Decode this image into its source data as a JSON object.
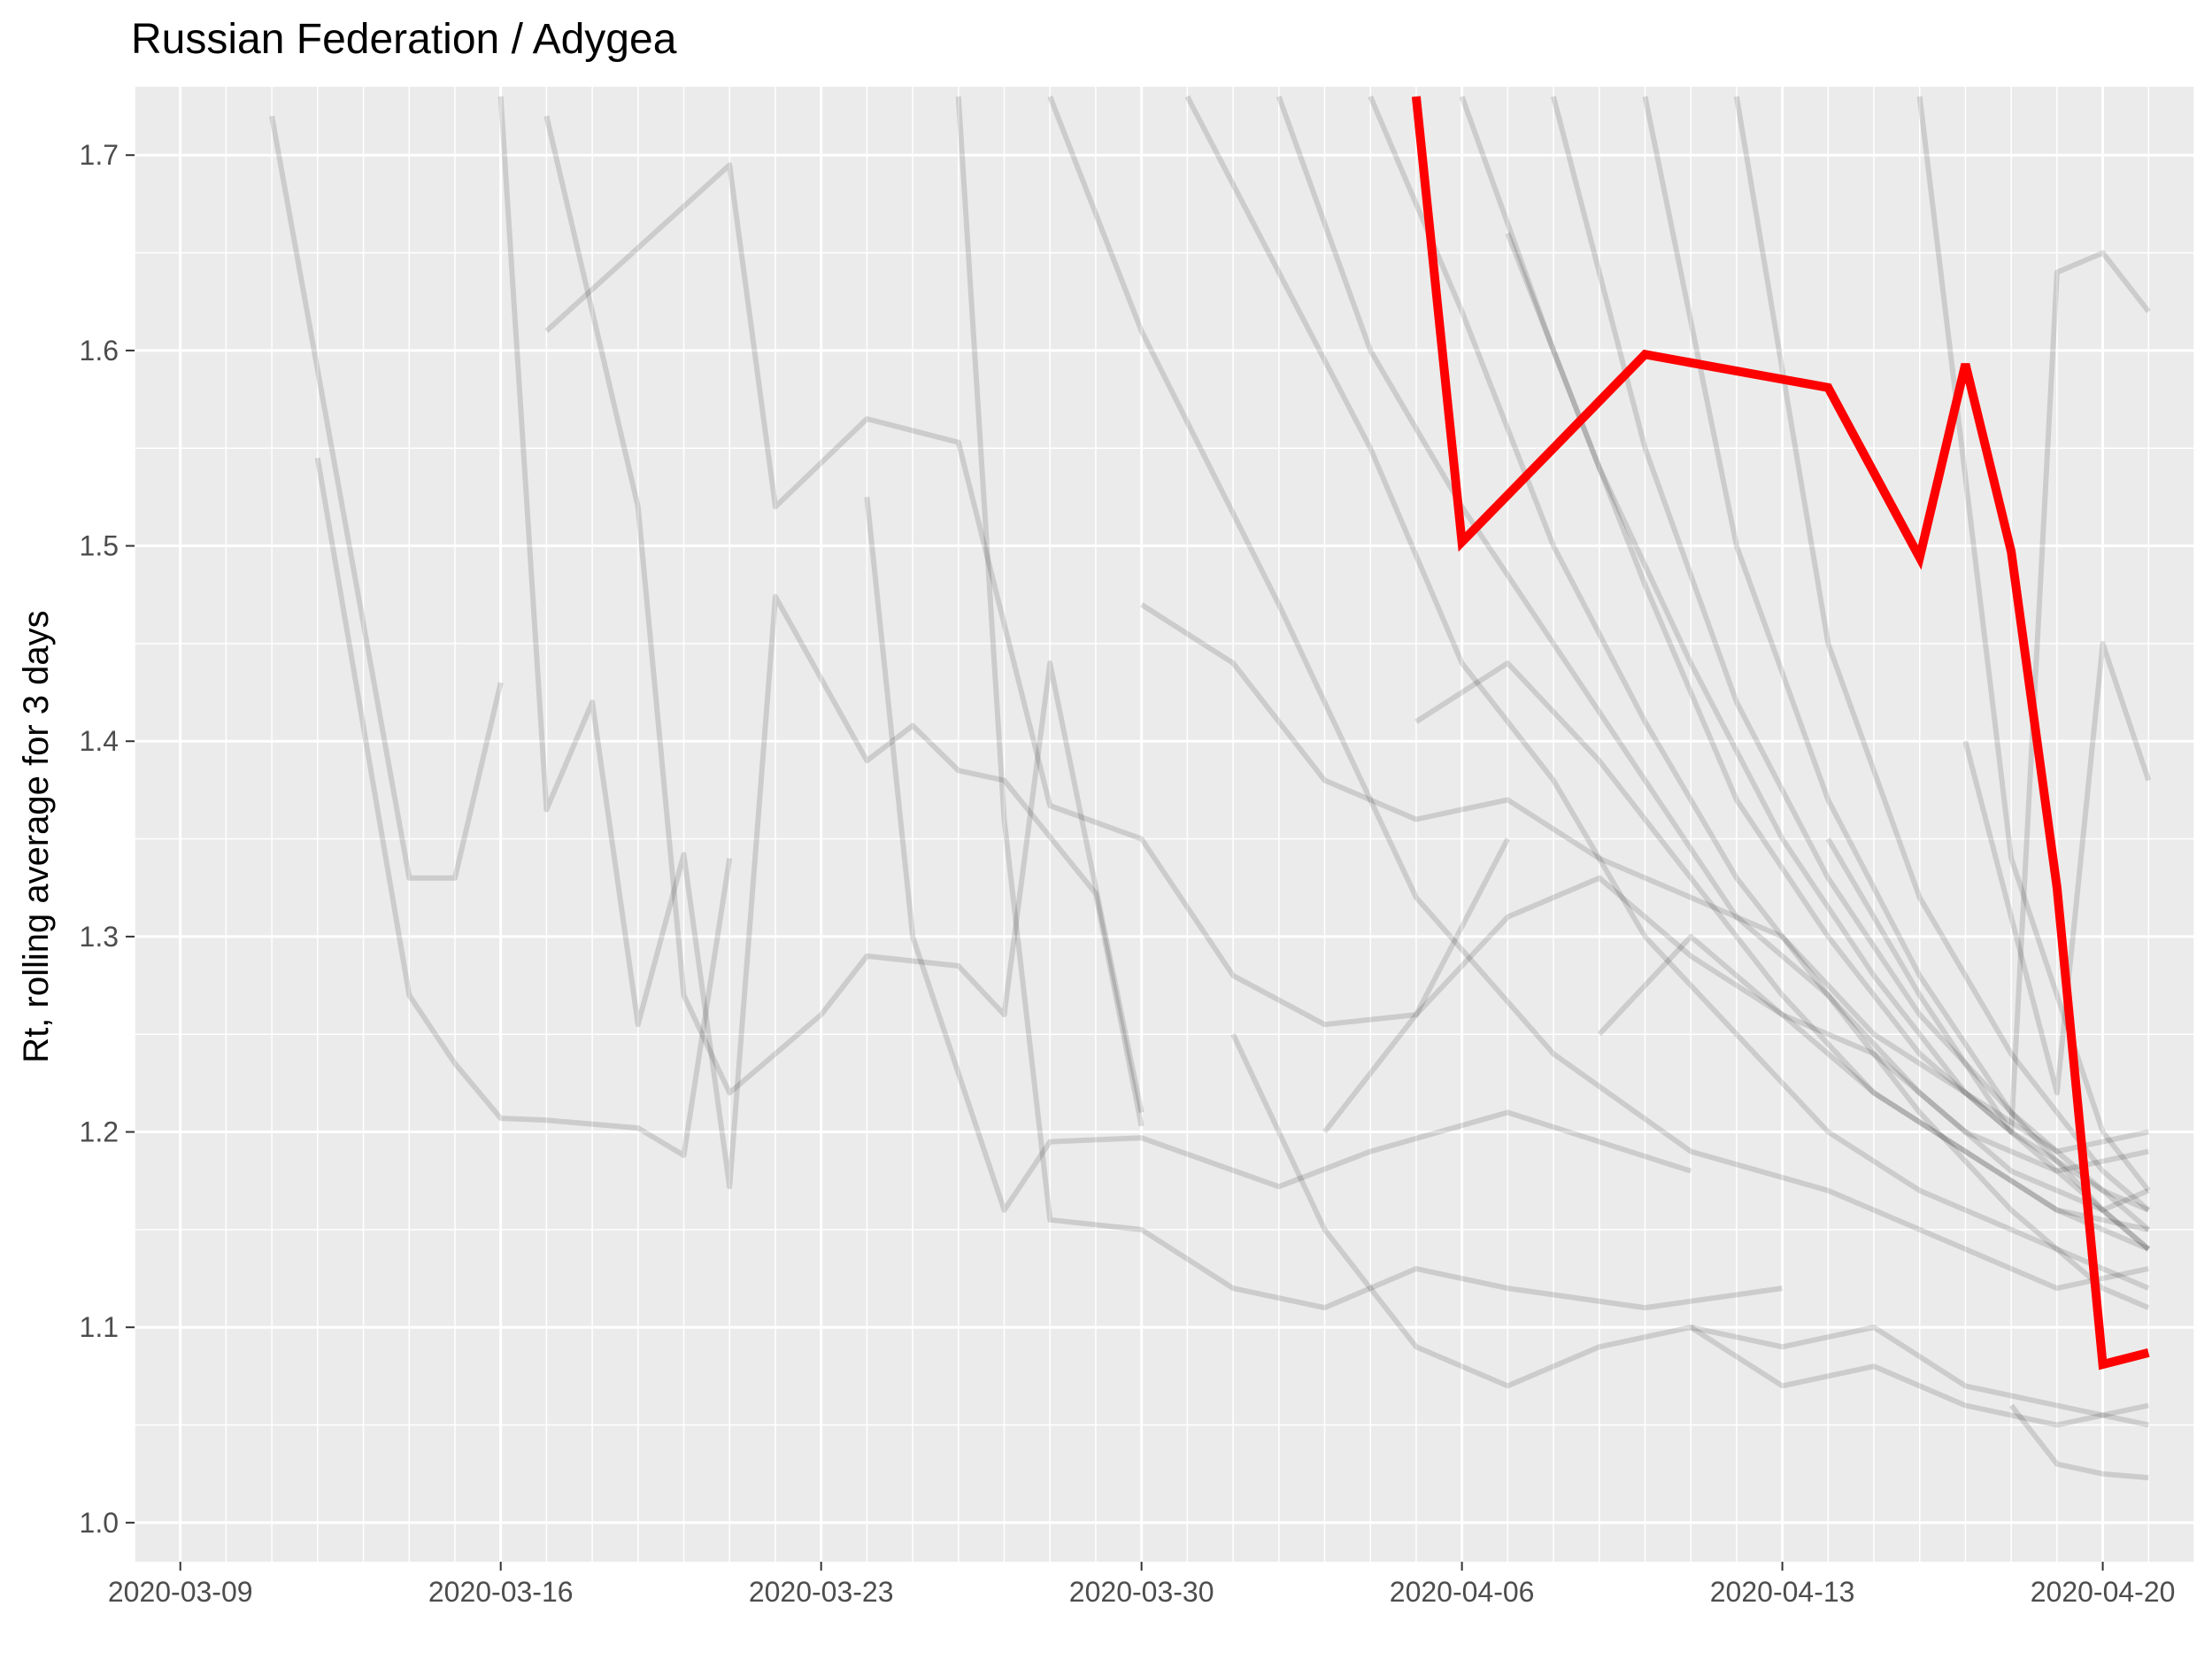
{
  "chart_data": {
    "type": "line",
    "title": "Russian Federation / Adygea",
    "xlabel": "",
    "ylabel": "Rt, rolling average for 3 days",
    "x_tick_labels": [
      "2020-03-09",
      "2020-03-16",
      "2020-03-23",
      "2020-03-30",
      "2020-04-06",
      "2020-04-13",
      "2020-04-20"
    ],
    "x_range": [
      "2020-03-08",
      "2020-04-22"
    ],
    "ylim": [
      0.98,
      1.735
    ],
    "y_ticks": [
      1.0,
      1.1,
      1.2,
      1.3,
      1.4,
      1.5,
      1.6,
      1.7
    ],
    "y_tick_labels": [
      "1.0",
      "1.1",
      "1.2",
      "1.3",
      "1.4",
      "1.5",
      "1.6",
      "1.7"
    ],
    "grid": true,
    "legend": "none",
    "colors": {
      "panel": "#ebebeb",
      "grid": "#ffffff",
      "highlight": "#ff0000",
      "background_series": "#000000"
    },
    "series": [
      {
        "highlight": true,
        "x": [
          "2020-04-05",
          "2020-04-06",
          "2020-04-10",
          "2020-04-14",
          "2020-04-16",
          "2020-04-17",
          "2020-04-18",
          "2020-04-19",
          "2020-04-20",
          "2020-04-21"
        ],
        "y": [
          1.73,
          1.502,
          1.598,
          1.581,
          1.494,
          1.593,
          1.497,
          1.325,
          1.081,
          1.087
        ]
      },
      {
        "x": [
          "2020-03-11",
          "2020-03-13",
          "2020-03-14",
          "2020-03-15",
          "2020-03-16"
        ],
        "y": [
          1.72,
          1.46,
          1.33,
          1.33,
          1.43
        ]
      },
      {
        "x": [
          "2020-03-12",
          "2020-03-14",
          "2020-03-15",
          "2020-03-16",
          "2020-03-17",
          "2020-03-19",
          "2020-03-20",
          "2020-03-21"
        ],
        "y": [
          1.545,
          1.27,
          1.235,
          1.207,
          1.206,
          1.202,
          1.188,
          1.34
        ]
      },
      {
        "x": [
          "2020-03-16",
          "2020-03-17",
          "2020-03-18",
          "2020-03-19",
          "2020-03-20",
          "2020-03-21",
          "2020-03-22",
          "2020-03-24",
          "2020-03-25",
          "2020-03-26",
          "2020-03-27",
          "2020-03-29",
          "2020-03-30"
        ],
        "y": [
          1.73,
          1.365,
          1.42,
          1.255,
          1.342,
          1.172,
          1.474,
          1.39,
          1.408,
          1.385,
          1.38,
          1.322,
          1.203
        ]
      },
      {
        "x": [
          "2020-03-17",
          "2020-03-19",
          "2020-03-20",
          "2020-03-21",
          "2020-03-23",
          "2020-03-24",
          "2020-03-26",
          "2020-03-27",
          "2020-03-28",
          "2020-03-30"
        ],
        "y": [
          1.72,
          1.52,
          1.27,
          1.22,
          1.26,
          1.29,
          1.285,
          1.26,
          1.44,
          1.21
        ]
      },
      {
        "x": [
          "2020-03-17",
          "2020-03-21",
          "2020-03-22",
          "2020-03-24",
          "2020-03-26",
          "2020-03-28",
          "2020-03-30",
          "2020-04-01",
          "2020-04-03",
          "2020-04-05",
          "2020-04-07"
        ],
        "y": [
          1.61,
          1.695,
          1.52,
          1.565,
          1.553,
          1.367,
          1.35,
          1.28,
          1.255,
          1.26,
          1.35
        ]
      },
      {
        "x": [
          "2020-03-24",
          "2020-03-25",
          "2020-03-27",
          "2020-03-28",
          "2020-03-30",
          "2020-04-02",
          "2020-04-04",
          "2020-04-07",
          "2020-04-11"
        ],
        "y": [
          1.525,
          1.3,
          1.16,
          1.195,
          1.197,
          1.172,
          1.19,
          1.21,
          1.18
        ]
      },
      {
        "x": [
          "2020-03-26",
          "2020-03-27",
          "2020-03-28",
          "2020-03-30",
          "2020-04-01",
          "2020-04-03",
          "2020-04-05",
          "2020-04-07",
          "2020-04-10",
          "2020-04-13"
        ],
        "y": [
          1.73,
          1.36,
          1.155,
          1.15,
          1.12,
          1.11,
          1.13,
          1.12,
          1.11,
          1.12
        ]
      },
      {
        "x": [
          "2020-03-30",
          "2020-04-01",
          "2020-04-03",
          "2020-04-05",
          "2020-04-07",
          "2020-04-09",
          "2020-04-11",
          "2020-04-13",
          "2020-04-15",
          "2020-04-17",
          "2020-04-19",
          "2020-04-21"
        ],
        "y": [
          1.47,
          1.44,
          1.38,
          1.36,
          1.37,
          1.34,
          1.32,
          1.3,
          1.25,
          1.22,
          1.19,
          1.2
        ]
      },
      {
        "x": [
          "2020-03-28",
          "2020-03-30",
          "2020-04-02",
          "2020-04-05",
          "2020-04-08",
          "2020-04-11",
          "2020-04-14",
          "2020-04-17",
          "2020-04-19",
          "2020-04-21"
        ],
        "y": [
          1.73,
          1.61,
          1.47,
          1.32,
          1.24,
          1.19,
          1.17,
          1.14,
          1.12,
          1.13
        ]
      },
      {
        "x": [
          "2020-04-01",
          "2020-04-03",
          "2020-04-05",
          "2020-04-07",
          "2020-04-09",
          "2020-04-11",
          "2020-04-13",
          "2020-04-15",
          "2020-04-17",
          "2020-04-19",
          "2020-04-21"
        ],
        "y": [
          1.25,
          1.15,
          1.09,
          1.07,
          1.09,
          1.1,
          1.07,
          1.08,
          1.06,
          1.05,
          1.06
        ]
      },
      {
        "x": [
          "2020-03-31",
          "2020-04-02",
          "2020-04-04",
          "2020-04-06",
          "2020-04-08",
          "2020-04-10",
          "2020-04-12",
          "2020-04-14",
          "2020-04-16",
          "2020-04-18",
          "2020-04-20",
          "2020-04-21"
        ],
        "y": [
          1.73,
          1.64,
          1.55,
          1.44,
          1.38,
          1.3,
          1.25,
          1.2,
          1.17,
          1.15,
          1.13,
          1.12
        ]
      },
      {
        "x": [
          "2020-04-02",
          "2020-04-04",
          "2020-04-06",
          "2020-04-08",
          "2020-04-10",
          "2020-04-12",
          "2020-04-14",
          "2020-04-16",
          "2020-04-18",
          "2020-04-20",
          "2020-04-21"
        ],
        "y": [
          1.73,
          1.6,
          1.52,
          1.45,
          1.38,
          1.31,
          1.27,
          1.22,
          1.18,
          1.16,
          1.17
        ]
      },
      {
        "x": [
          "2020-04-03",
          "2020-04-05",
          "2020-04-07",
          "2020-04-09",
          "2020-04-11",
          "2020-04-13",
          "2020-04-15",
          "2020-04-17",
          "2020-04-19",
          "2020-04-21"
        ],
        "y": [
          1.2,
          1.26,
          1.31,
          1.33,
          1.29,
          1.26,
          1.24,
          1.2,
          1.18,
          1.19
        ]
      },
      {
        "x": [
          "2020-04-04",
          "2020-04-06",
          "2020-04-08",
          "2020-04-10",
          "2020-04-12",
          "2020-04-14",
          "2020-04-16",
          "2020-04-18",
          "2020-04-20",
          "2020-04-21"
        ],
        "y": [
          1.73,
          1.62,
          1.5,
          1.41,
          1.33,
          1.27,
          1.21,
          1.16,
          1.12,
          1.11
        ]
      },
      {
        "x": [
          "2020-04-05",
          "2020-04-07",
          "2020-04-09",
          "2020-04-11",
          "2020-04-13",
          "2020-04-15",
          "2020-04-17",
          "2020-04-19",
          "2020-04-21"
        ],
        "y": [
          1.41,
          1.44,
          1.39,
          1.33,
          1.27,
          1.22,
          1.19,
          1.16,
          1.15
        ]
      },
      {
        "x": [
          "2020-04-06",
          "2020-04-08",
          "2020-04-10",
          "2020-04-12",
          "2020-04-14",
          "2020-04-16",
          "2020-04-18",
          "2020-04-20",
          "2020-04-21"
        ],
        "y": [
          1.73,
          1.6,
          1.48,
          1.37,
          1.3,
          1.24,
          1.2,
          1.17,
          1.16
        ]
      },
      {
        "x": [
          "2020-04-07",
          "2020-04-09",
          "2020-04-11",
          "2020-04-13",
          "2020-04-15",
          "2020-04-17",
          "2020-04-19",
          "2020-04-21"
        ],
        "y": [
          1.66,
          1.54,
          1.44,
          1.35,
          1.28,
          1.22,
          1.18,
          1.14
        ]
      },
      {
        "x": [
          "2020-04-08",
          "2020-04-10",
          "2020-04-12",
          "2020-04-14",
          "2020-04-16",
          "2020-04-18",
          "2020-04-20",
          "2020-04-21"
        ],
        "y": [
          1.73,
          1.55,
          1.42,
          1.33,
          1.26,
          1.21,
          1.17,
          1.15
        ]
      },
      {
        "x": [
          "2020-04-09",
          "2020-04-11",
          "2020-04-13",
          "2020-04-15",
          "2020-04-17",
          "2020-04-19",
          "2020-04-21"
        ],
        "y": [
          1.25,
          1.3,
          1.26,
          1.22,
          1.19,
          1.16,
          1.14
        ]
      },
      {
        "x": [
          "2020-04-10",
          "2020-04-12",
          "2020-04-14",
          "2020-04-16",
          "2020-04-18",
          "2020-04-20",
          "2020-04-21"
        ],
        "y": [
          1.73,
          1.5,
          1.37,
          1.28,
          1.21,
          1.16,
          1.14
        ]
      },
      {
        "x": [
          "2020-04-11",
          "2020-04-13",
          "2020-04-15",
          "2020-04-17",
          "2020-04-19",
          "2020-04-21"
        ],
        "y": [
          1.1,
          1.09,
          1.1,
          1.07,
          1.06,
          1.05
        ]
      },
      {
        "x": [
          "2020-04-12",
          "2020-04-14",
          "2020-04-16",
          "2020-04-18",
          "2020-04-20",
          "2020-04-21"
        ],
        "y": [
          1.73,
          1.45,
          1.32,
          1.24,
          1.18,
          1.16
        ]
      },
      {
        "x": [
          "2020-04-14",
          "2020-04-16",
          "2020-04-18",
          "2020-04-19",
          "2020-04-20",
          "2020-04-21"
        ],
        "y": [
          1.35,
          1.27,
          1.2,
          1.64,
          1.65,
          1.62
        ]
      },
      {
        "x": [
          "2020-04-16",
          "2020-04-18",
          "2020-04-20",
          "2020-04-21"
        ],
        "y": [
          1.73,
          1.34,
          1.2,
          1.17
        ]
      },
      {
        "x": [
          "2020-04-17",
          "2020-04-19",
          "2020-04-20",
          "2020-04-21"
        ],
        "y": [
          1.4,
          1.22,
          1.45,
          1.38
        ]
      },
      {
        "x": [
          "2020-04-18",
          "2020-04-19",
          "2020-04-20",
          "2020-04-21"
        ],
        "y": [
          1.06,
          1.03,
          1.025,
          1.023
        ]
      }
    ]
  }
}
